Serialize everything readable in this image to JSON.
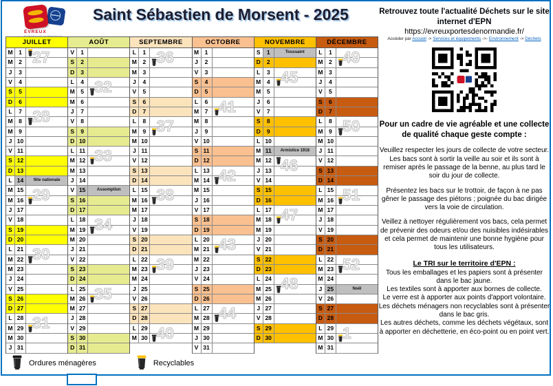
{
  "header": {
    "title": "Saint Sébastien de Morsent - 2025",
    "logo_caption1": "ÉVREUX",
    "logo_caption2": "PORTES DE NORMANDIE"
  },
  "legend": {
    "om_label": "Ordures ménagères",
    "rec_label": "Recyclables"
  },
  "colors": {
    "page_border": "#0070C0",
    "holiday": "#BFBFBF",
    "recyclable_lid": "#FFC000",
    "bin_body": "#262626",
    "link": "#0563C1"
  },
  "info_panel": {
    "heading": "Retrouvez toute l'actualité Déchets sur le site internet d'EPN",
    "url": "https://evreuxportesdenormandie.fr/",
    "access_prefix": "Accéder par",
    "breadcrumb": [
      "Accueil",
      "Services et équipements",
      "Environnement",
      "Déchets"
    ],
    "separators": [
      "->",
      "->-",
      "->"
    ],
    "quality_heading": "Pour un cadre de vie agréable et une collecte de qualité chaque geste compte :",
    "paragraphs": [
      "Veuillez respecter les jours de collecte de votre secteur. Les bacs sont à sortir la veille au soir et ils sont à remiser après le passage de la benne, au plus tard le soir du jour de collecte.",
      "Présentez les bacs sur le trottoir, de façon à ne pas gêner le passage des piétons ; poignée du bac dirigée vers la voie de circulation.",
      "Veillez à nettoyer régulièrement vos bacs, cela permet de prévenir des odeurs et/ou des nuisibles indésirables et cela permet de maintenir une bonne hygiène pour tous les utilisateurs."
    ],
    "tri_heading": "Le TRI sur le territoire d'EPN :",
    "tri_lines": [
      "Tous les emballages et les papiers sont à présenter dans le bac jaune.",
      "Les textiles sont à apporter aux bornes de collecte.",
      "Le verre est à apporter aux points d'apport volontaire.",
      "Les déchets ménagers non recyclables sont à présenter dans le bac gris.",
      "Les autres déchets, comme les déchets végétaux, sont à apporter en déchetterie, en éco-point ou en point vert."
    ]
  },
  "calendar": {
    "year": "2025",
    "months": [
      {
        "name": "JUILLET",
        "color": "#FFFF00",
        "days": [
          [
            "M",
            1,
            "rec",
            "27"
          ],
          [
            "M",
            2
          ],
          [
            "J",
            3
          ],
          [
            "V",
            4
          ],
          [
            "S",
            5,
            "w"
          ],
          [
            "D",
            6,
            "w"
          ],
          [
            "L",
            7,
            "",
            "28"
          ],
          [
            "M",
            8,
            "om"
          ],
          [
            "M",
            9
          ],
          [
            "J",
            10
          ],
          [
            "V",
            11
          ],
          [
            "S",
            12,
            "w"
          ],
          [
            "D",
            13,
            "w"
          ],
          [
            "L",
            14,
            "h:fête nationale"
          ],
          [
            "M",
            15,
            "",
            "29"
          ],
          [
            "M",
            16,
            "rec"
          ],
          [
            "J",
            17
          ],
          [
            "V",
            18
          ],
          [
            "S",
            19,
            "w"
          ],
          [
            "D",
            20,
            "w"
          ],
          [
            "L",
            21,
            "",
            "30"
          ],
          [
            "M",
            22,
            "om"
          ],
          [
            "M",
            23
          ],
          [
            "J",
            24
          ],
          [
            "V",
            25
          ],
          [
            "S",
            26,
            "w"
          ],
          [
            "D",
            27,
            "w"
          ],
          [
            "L",
            28,
            "",
            "31"
          ],
          [
            "M",
            29,
            "rec"
          ],
          [
            "M",
            30
          ],
          [
            "J",
            31
          ]
        ]
      },
      {
        "name": "AOÛT",
        "color": "#E7EB8F",
        "days": [
          [
            "V",
            1
          ],
          [
            "S",
            2,
            "w"
          ],
          [
            "D",
            3,
            "w"
          ],
          [
            "L",
            4,
            "",
            "32"
          ],
          [
            "M",
            5,
            "om"
          ],
          [
            "M",
            6
          ],
          [
            "J",
            7
          ],
          [
            "V",
            8
          ],
          [
            "S",
            9,
            "w"
          ],
          [
            "D",
            10,
            "w"
          ],
          [
            "L",
            11,
            "",
            "33"
          ],
          [
            "M",
            12,
            "rec"
          ],
          [
            "M",
            13
          ],
          [
            "J",
            14
          ],
          [
            "V",
            15,
            "h:Assomption"
          ],
          [
            "S",
            16,
            "w"
          ],
          [
            "D",
            17,
            "w"
          ],
          [
            "L",
            18,
            "",
            "34"
          ],
          [
            "M",
            19,
            "om"
          ],
          [
            "M",
            20
          ],
          [
            "J",
            21
          ],
          [
            "V",
            22
          ],
          [
            "S",
            23,
            "w"
          ],
          [
            "D",
            24,
            "w"
          ],
          [
            "L",
            25,
            "",
            "35"
          ],
          [
            "M",
            26,
            "rec"
          ],
          [
            "M",
            27
          ],
          [
            "J",
            28
          ],
          [
            "V",
            29
          ],
          [
            "S",
            30,
            "w"
          ],
          [
            "D",
            31,
            "w"
          ]
        ]
      },
      {
        "name": "SEPTEMBRE",
        "color": "#FBE3BC",
        "days": [
          [
            "L",
            1,
            "",
            "36"
          ],
          [
            "M",
            2,
            "om"
          ],
          [
            "M",
            3
          ],
          [
            "J",
            4
          ],
          [
            "V",
            5
          ],
          [
            "S",
            6,
            "w"
          ],
          [
            "D",
            7,
            "w"
          ],
          [
            "L",
            8,
            "",
            "37"
          ],
          [
            "M",
            9,
            "rec"
          ],
          [
            "M",
            10
          ],
          [
            "J",
            11
          ],
          [
            "V",
            12
          ],
          [
            "S",
            13,
            "w"
          ],
          [
            "D",
            14,
            "w"
          ],
          [
            "L",
            15,
            "",
            "38"
          ],
          [
            "M",
            16,
            "om"
          ],
          [
            "M",
            17
          ],
          [
            "J",
            18
          ],
          [
            "V",
            19
          ],
          [
            "S",
            20,
            "w"
          ],
          [
            "D",
            21,
            "w"
          ],
          [
            "L",
            22,
            "",
            "39"
          ],
          [
            "M",
            23,
            "rec"
          ],
          [
            "M",
            24
          ],
          [
            "J",
            25
          ],
          [
            "V",
            26
          ],
          [
            "S",
            27,
            "w"
          ],
          [
            "D",
            28,
            "w"
          ],
          [
            "L",
            29,
            "",
            "40"
          ],
          [
            "M",
            30,
            "om"
          ]
        ]
      },
      {
        "name": "OCTOBRE",
        "color": "#FAC090",
        "days": [
          [
            "M",
            1
          ],
          [
            "J",
            2
          ],
          [
            "V",
            3
          ],
          [
            "S",
            4,
            "w"
          ],
          [
            "D",
            5,
            "w"
          ],
          [
            "L",
            6,
            "",
            "41"
          ],
          [
            "M",
            7,
            "rec"
          ],
          [
            "M",
            8
          ],
          [
            "J",
            9
          ],
          [
            "V",
            10
          ],
          [
            "S",
            11,
            "w"
          ],
          [
            "D",
            12,
            "w"
          ],
          [
            "L",
            13,
            "",
            "42"
          ],
          [
            "M",
            14,
            "om"
          ],
          [
            "M",
            15
          ],
          [
            "J",
            16
          ],
          [
            "V",
            17
          ],
          [
            "S",
            18,
            "w"
          ],
          [
            "D",
            19,
            "w"
          ],
          [
            "L",
            20,
            "",
            "43"
          ],
          [
            "M",
            21,
            "rec"
          ],
          [
            "M",
            22
          ],
          [
            "J",
            23
          ],
          [
            "V",
            24
          ],
          [
            "S",
            25,
            "w"
          ],
          [
            "D",
            26,
            "w"
          ],
          [
            "L",
            27,
            "",
            "44"
          ],
          [
            "M",
            28,
            "om"
          ],
          [
            "M",
            29
          ],
          [
            "J",
            30
          ],
          [
            "V",
            31
          ]
        ]
      },
      {
        "name": "NOVEMBRE",
        "color": "#FFC000",
        "days": [
          [
            "S",
            1,
            "h:Toussaint"
          ],
          [
            "D",
            2,
            "w"
          ],
          [
            "L",
            3,
            "",
            "45"
          ],
          [
            "M",
            4,
            "rec"
          ],
          [
            "M",
            5
          ],
          [
            "J",
            6
          ],
          [
            "V",
            7
          ],
          [
            "S",
            8,
            "w"
          ],
          [
            "D",
            9,
            "w"
          ],
          [
            "L",
            10
          ],
          [
            "M",
            11,
            "h:Armistice 1918"
          ],
          [
            "M",
            12,
            "om",
            "46"
          ],
          [
            "J",
            13
          ],
          [
            "V",
            14
          ],
          [
            "S",
            15,
            "w"
          ],
          [
            "D",
            16,
            "w"
          ],
          [
            "L",
            17,
            "",
            "47"
          ],
          [
            "M",
            18,
            "rec"
          ],
          [
            "M",
            19
          ],
          [
            "J",
            20
          ],
          [
            "V",
            21
          ],
          [
            "S",
            22,
            "w"
          ],
          [
            "D",
            23,
            "w"
          ],
          [
            "L",
            24,
            "",
            "48"
          ],
          [
            "M",
            25,
            "om"
          ],
          [
            "M",
            26
          ],
          [
            "J",
            27
          ],
          [
            "V",
            28
          ],
          [
            "S",
            29,
            "w"
          ],
          [
            "D",
            30,
            "w"
          ]
        ]
      },
      {
        "name": "DÉCEMBRE",
        "color": "#C75B10",
        "days": [
          [
            "L",
            1,
            "",
            "49"
          ],
          [
            "M",
            2,
            "rec"
          ],
          [
            "M",
            3
          ],
          [
            "J",
            4
          ],
          [
            "V",
            5
          ],
          [
            "S",
            6,
            "w"
          ],
          [
            "D",
            7,
            "w"
          ],
          [
            "L",
            8,
            "",
            "50"
          ],
          [
            "M",
            9,
            "om"
          ],
          [
            "M",
            10
          ],
          [
            "J",
            11
          ],
          [
            "V",
            12
          ],
          [
            "S",
            13,
            "w"
          ],
          [
            "D",
            14,
            "w"
          ],
          [
            "L",
            15,
            "",
            "51"
          ],
          [
            "M",
            16,
            "rec"
          ],
          [
            "M",
            17
          ],
          [
            "J",
            18
          ],
          [
            "V",
            19
          ],
          [
            "S",
            20,
            "w"
          ],
          [
            "D",
            21,
            "w"
          ],
          [
            "L",
            22,
            "",
            "52"
          ],
          [
            "M",
            23,
            "om"
          ],
          [
            "M",
            24
          ],
          [
            "J",
            25,
            "h:Noël"
          ],
          [
            "V",
            26
          ],
          [
            "S",
            27,
            "w"
          ],
          [
            "D",
            28,
            "w"
          ],
          [
            "L",
            29,
            "",
            "1"
          ],
          [
            "M",
            30,
            "rec"
          ],
          [
            "M",
            31
          ]
        ]
      }
    ]
  }
}
